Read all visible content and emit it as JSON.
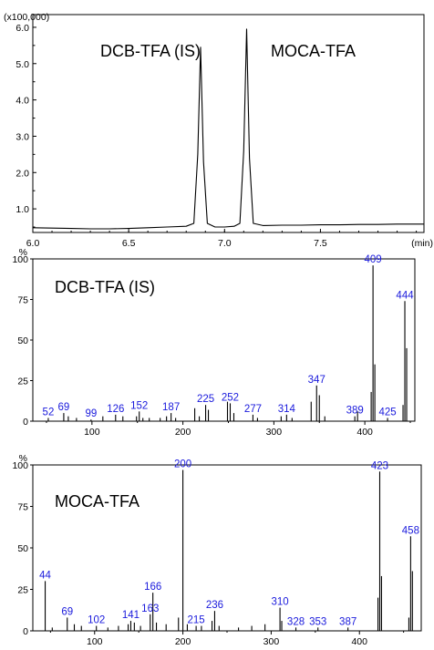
{
  "chart_data": [
    {
      "type": "line",
      "multiplier_label": "(x100,000)",
      "xlabel": "(min)",
      "xlim": [
        6.0,
        8.04
      ],
      "ylim": [
        0.35,
        6.35
      ],
      "x_ticks": [
        6.0,
        6.5,
        7.0,
        7.5
      ],
      "x_tick_labels": [
        "6.0",
        "6.5",
        "7.0",
        "7.5"
      ],
      "y_ticks": [
        1.0,
        2.0,
        3.0,
        4.0,
        5.0,
        6.0
      ],
      "y_tick_labels": [
        "1.0",
        "2.0",
        "3.0",
        "4.0",
        "5.0",
        "6.0"
      ],
      "annotations": [
        "DCB-TFA (IS)",
        "MOCA-TFA"
      ],
      "series": [
        {
          "x": [
            6.0,
            6.1,
            6.2,
            6.3,
            6.4,
            6.5,
            6.6,
            6.7,
            6.8,
            6.84,
            6.86,
            6.875,
            6.89,
            6.91,
            6.95,
            7.0,
            7.05,
            7.08,
            7.1,
            7.115,
            7.13,
            7.15,
            7.2,
            7.3,
            7.4,
            7.5,
            7.6,
            7.7,
            7.8,
            7.9,
            8.04
          ],
          "y": [
            0.48,
            0.47,
            0.46,
            0.45,
            0.45,
            0.46,
            0.48,
            0.5,
            0.52,
            0.6,
            2.5,
            5.45,
            2.3,
            0.6,
            0.5,
            0.5,
            0.52,
            0.6,
            2.6,
            5.95,
            2.4,
            0.6,
            0.54,
            0.55,
            0.55,
            0.56,
            0.56,
            0.57,
            0.57,
            0.58,
            0.58
          ]
        }
      ]
    },
    {
      "type": "bar",
      "title": "DCB-TFA (IS)",
      "ylabel": "%",
      "xlim": [
        35,
        455
      ],
      "ylim": [
        0,
        100
      ],
      "x_ticks": [
        100,
        200,
        300,
        400
      ],
      "x_tick_labels": [
        "100",
        "200",
        "300",
        "400"
      ],
      "y_ticks": [
        0,
        25,
        50,
        75,
        100
      ],
      "y_tick_labels": [
        "0",
        "25",
        "50",
        "75",
        "100"
      ],
      "x": [
        52,
        69,
        74,
        83,
        99,
        112,
        126,
        134,
        149,
        152,
        156,
        163,
        175,
        182,
        187,
        192,
        213,
        218,
        225,
        228,
        249,
        252,
        256,
        277,
        282,
        308,
        314,
        320,
        341,
        347,
        350,
        356,
        389,
        392,
        407,
        409,
        411,
        425,
        442,
        444,
        446
      ],
      "values": [
        2,
        5,
        3,
        2,
        1,
        3,
        4,
        3,
        3,
        6,
        2,
        2,
        2,
        3,
        5,
        2,
        8,
        3,
        10,
        7,
        12,
        11,
        5,
        4,
        2,
        3,
        4,
        2,
        12,
        22,
        16,
        3,
        3,
        6,
        18,
        96,
        35,
        2,
        10,
        74,
        45
      ],
      "labeled_peaks": [
        {
          "mz": 52,
          "label": "52"
        },
        {
          "mz": 69,
          "label": "69"
        },
        {
          "mz": 99,
          "label": "99"
        },
        {
          "mz": 126,
          "label": "126"
        },
        {
          "mz": 152,
          "label": "152"
        },
        {
          "mz": 187,
          "label": "187"
        },
        {
          "mz": 225,
          "label": "225"
        },
        {
          "mz": 252,
          "label": "252"
        },
        {
          "mz": 277,
          "label": "277"
        },
        {
          "mz": 314,
          "label": "314"
        },
        {
          "mz": 347,
          "label": "347"
        },
        {
          "mz": 389,
          "label": "389"
        },
        {
          "mz": 409,
          "label": "409"
        },
        {
          "mz": 425,
          "label": "425"
        },
        {
          "mz": 444,
          "label": "444"
        }
      ]
    },
    {
      "type": "bar",
      "title": "MOCA-TFA",
      "ylabel": "%",
      "xlim": [
        30,
        470
      ],
      "ylim": [
        0,
        100
      ],
      "x_ticks": [
        100,
        200,
        300,
        400
      ],
      "x_tick_labels": [
        "100",
        "200",
        "300",
        "400"
      ],
      "y_ticks": [
        0,
        25,
        50,
        75,
        100
      ],
      "y_tick_labels": [
        "0",
        "25",
        "50",
        "75",
        "100"
      ],
      "x": [
        44,
        52,
        69,
        77,
        85,
        102,
        115,
        127,
        138,
        141,
        145,
        152,
        163,
        166,
        170,
        181,
        195,
        200,
        205,
        215,
        221,
        233,
        236,
        241,
        263,
        278,
        293,
        310,
        312,
        328,
        353,
        387,
        421,
        423,
        425,
        456,
        458,
        460
      ],
      "values": [
        30,
        2,
        8,
        4,
        3,
        3,
        2,
        3,
        4,
        6,
        5,
        3,
        10,
        23,
        5,
        4,
        8,
        97,
        4,
        3,
        3,
        6,
        12,
        3,
        2,
        3,
        4,
        14,
        6,
        2,
        2,
        2,
        20,
        96,
        33,
        8,
        57,
        36
      ],
      "labeled_peaks": [
        {
          "mz": 44,
          "label": "44"
        },
        {
          "mz": 69,
          "label": "69"
        },
        {
          "mz": 102,
          "label": "102"
        },
        {
          "mz": 141,
          "label": "141"
        },
        {
          "mz": 163,
          "label": "163"
        },
        {
          "mz": 166,
          "label": "166"
        },
        {
          "mz": 200,
          "label": "200"
        },
        {
          "mz": 215,
          "label": "215"
        },
        {
          "mz": 236,
          "label": "236"
        },
        {
          "mz": 310,
          "label": "310"
        },
        {
          "mz": 328,
          "label": "328"
        },
        {
          "mz": 353,
          "label": "353"
        },
        {
          "mz": 387,
          "label": "387"
        },
        {
          "mz": 423,
          "label": "423"
        },
        {
          "mz": 458,
          "label": "458"
        }
      ]
    }
  ]
}
